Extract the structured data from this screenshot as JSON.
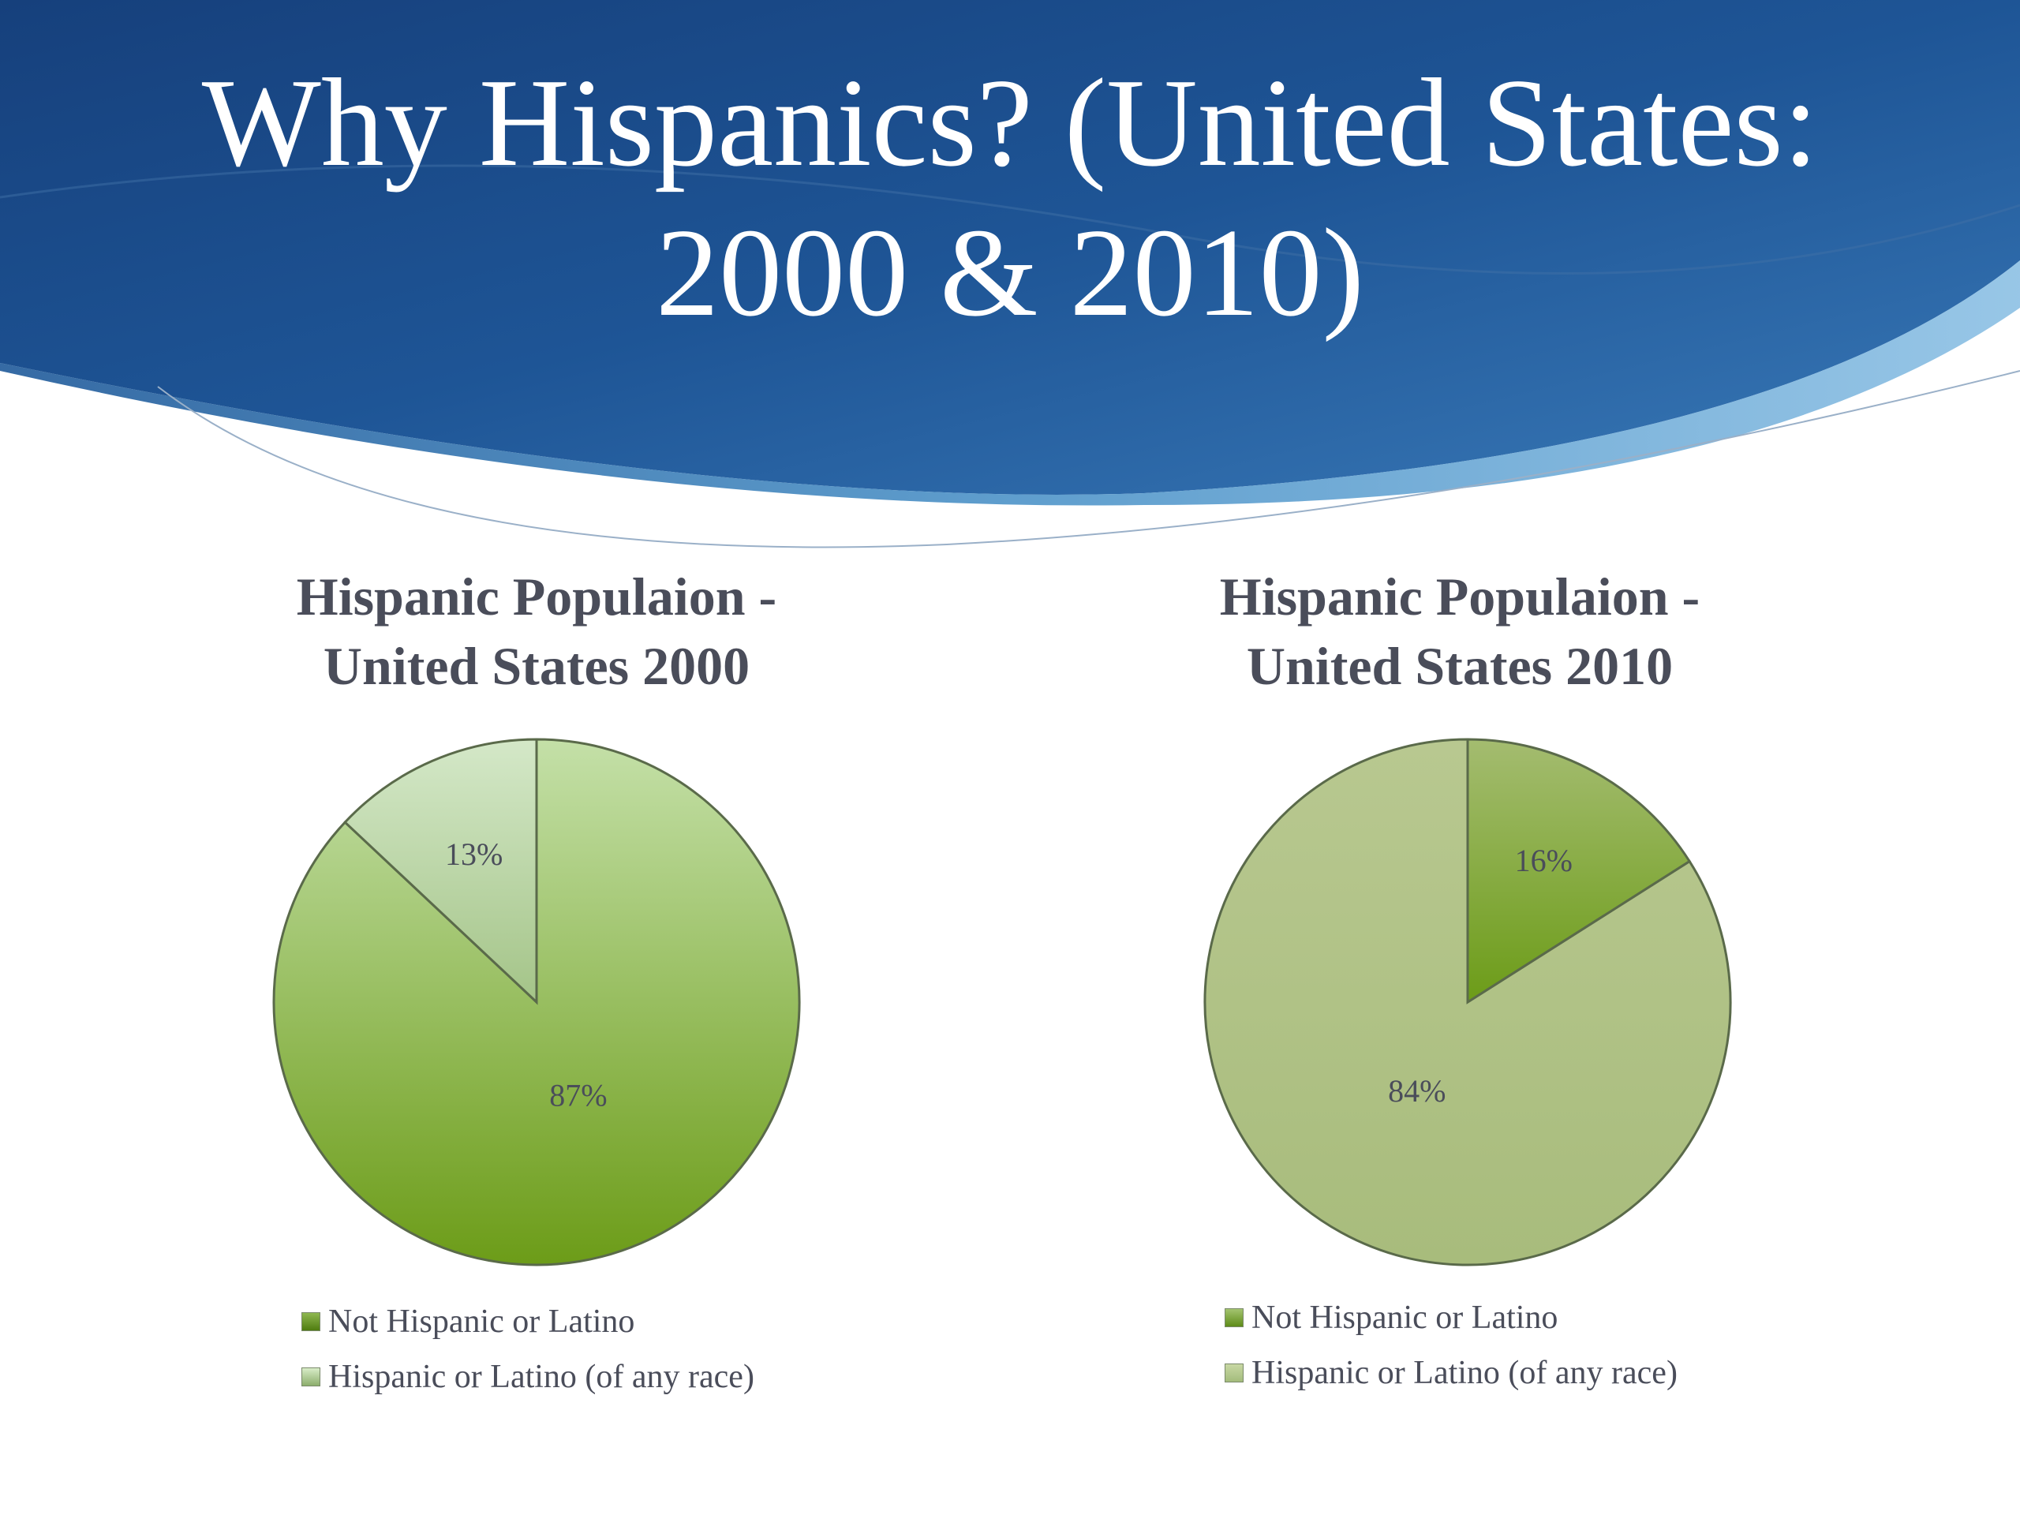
{
  "slide": {
    "title_line1": "Why Hispanics? (United States:",
    "title_line2": "2000 & 2010)"
  },
  "theme": {
    "banner_dark": "#1a4a8a",
    "banner_mid": "#2a6aa8",
    "banner_light": "#5a9ccc",
    "text_color": "#4a4d5a"
  },
  "chart_data": [
    {
      "type": "pie",
      "title_line1": "Hispanic Populaion -",
      "title_line2": "United States 2000",
      "legend": [
        "Not Hispanic or Latino",
        "Hispanic or Latino (of any race)"
      ],
      "values": [
        87,
        13
      ],
      "data_labels": [
        "87%",
        "13%"
      ],
      "colors": {
        "not_hispanic": {
          "light": "#c4e0a8",
          "dark": "#6c9c18"
        },
        "hispanic": {
          "light": "#d4e8c8",
          "dark": "#a4c488"
        }
      }
    },
    {
      "type": "pie",
      "title_line1": "Hispanic Populaion -",
      "title_line2": "United States 2010",
      "legend": [
        "Not Hispanic or Latino",
        "Hispanic or Latino (of any race)"
      ],
      "values": [
        84,
        16
      ],
      "data_labels": [
        "84%",
        "16%"
      ],
      "colors": {
        "not_hispanic": {
          "light": "#b8c890",
          "dark": "#a8bc7c"
        },
        "hispanic": {
          "light": "#a4bc70",
          "dark": "#6c9c18"
        }
      }
    }
  ]
}
